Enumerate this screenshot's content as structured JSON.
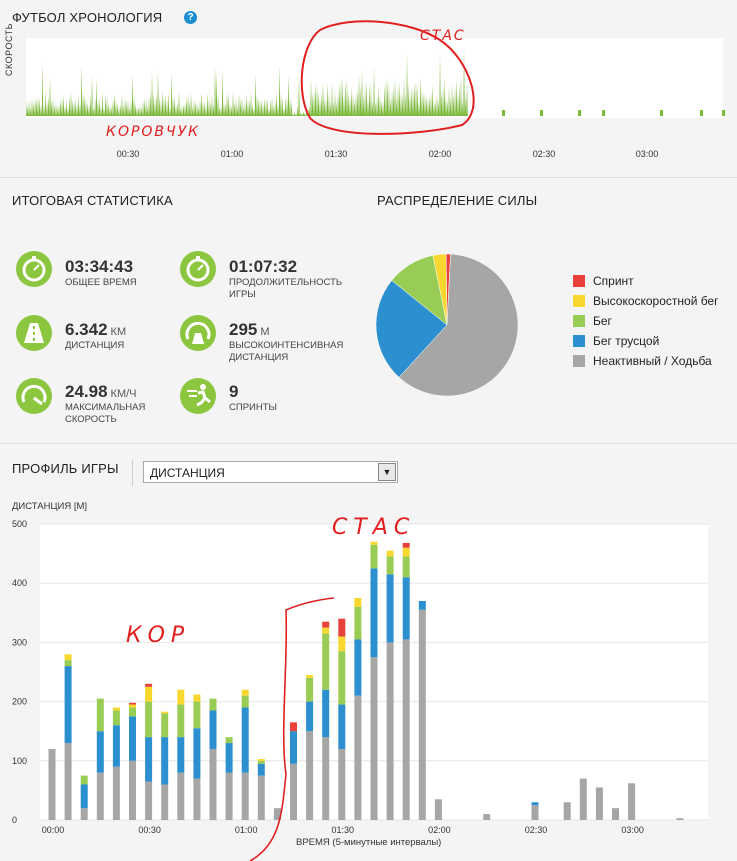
{
  "timeline": {
    "title": "ФУТБОЛ ХРОНОЛОГИЯ",
    "help": "?",
    "y_label": "СКОРОСТЬ",
    "ticks": [
      "00:30",
      "01:00",
      "01:30",
      "02:00",
      "02:30",
      "03:00"
    ],
    "annotation_kor": "КОРОВЧУК",
    "annotation_stas": "СТАС",
    "colors": {
      "speed": "#7cb83a",
      "annotation": "#e02020"
    }
  },
  "stats": {
    "title": "ИТОГОВАЯ СТАТИСТИКА",
    "items": [
      {
        "value": "03:34:43",
        "unit": "",
        "label": "ОБЩЕЕ ВРЕМЯ",
        "icon": "stopwatch-icon"
      },
      {
        "value": "01:07:32",
        "unit": "",
        "label": "ПРОДОЛЖИТЕЛЬНОСТЬ ИГРЫ",
        "icon": "stopwatch-icon"
      },
      {
        "value": "6.342",
        "unit": "КМ",
        "label": "ДИСТАНЦИЯ",
        "icon": "road-icon"
      },
      {
        "value": "295",
        "unit": "М",
        "label": "ВЫСОКОИНТЕНСИВНАЯ ДИСТАНЦИЯ",
        "icon": "speedometer-road-icon"
      },
      {
        "value": "24.98",
        "unit": "КМ/Ч",
        "label": "МАКСИМАЛЬНАЯ СКОРОСТЬ",
        "icon": "speedometer-icon"
      },
      {
        "value": "9",
        "unit": "",
        "label": "СПРИНТЫ",
        "icon": "sprint-icon"
      }
    ]
  },
  "distribution": {
    "title": "РАСПРЕДЕЛЕНИЕ СИЛЫ",
    "legend": [
      {
        "name": "Спринт",
        "color": "#e8413c",
        "share": 0.01
      },
      {
        "name": "Высокоскоростной бег",
        "color": "#f8d72e",
        "share": 0.03
      },
      {
        "name": "Бег",
        "color": "#99cc55",
        "share": 0.11
      },
      {
        "name": "Бег трусцой",
        "color": "#2c8fd0",
        "share": 0.24
      },
      {
        "name": "Неактивный / Ходьба",
        "color": "#a6a6a6",
        "share": 0.61
      }
    ]
  },
  "profile": {
    "title": "ПРОФИЛЬ ИГРЫ",
    "select_value": "ДИСТАНЦИЯ",
    "select_arrow": "▼",
    "annotation_kor": "КОР",
    "annotation_stas": "СТАС"
  },
  "chart_data": {
    "type": "bar",
    "stacked": true,
    "title": "",
    "ylabel": "ДИСТАНЦИЯ [М]",
    "xlabel": "ВРЕМЯ (5-минутные интервалы)",
    "ylim": [
      0,
      500
    ],
    "yticks": [
      "0",
      "100",
      "200",
      "300",
      "400",
      "500"
    ],
    "xtick_labels": [
      "00:00",
      "00:30",
      "01:00",
      "01:30",
      "02:00",
      "02:30",
      "03:00"
    ],
    "xtick_minutes": [
      0,
      30,
      60,
      90,
      120,
      150,
      180
    ],
    "grid": true,
    "x_minutes": [
      0,
      5,
      10,
      15,
      20,
      25,
      30,
      35,
      40,
      45,
      50,
      55,
      60,
      65,
      70,
      75,
      80,
      85,
      90,
      95,
      100,
      105,
      110,
      115,
      120,
      125,
      130,
      135,
      140,
      145,
      150,
      155,
      160,
      165,
      170,
      175,
      180,
      185,
      190,
      195
    ],
    "series": [
      {
        "name": "Неактивный / Ходьба",
        "color": "#a6a6a6",
        "values": [
          120,
          130,
          20,
          80,
          90,
          100,
          65,
          60,
          80,
          70,
          120,
          80,
          80,
          75,
          20,
          95,
          150,
          140,
          120,
          210,
          275,
          300,
          305,
          355,
          35,
          0,
          0,
          10,
          0,
          0,
          25,
          0,
          30,
          70,
          55,
          20,
          62,
          0,
          0,
          3
        ]
      },
      {
        "name": "Бег трусцой",
        "color": "#2c8fd0",
        "values": [
          0,
          130,
          40,
          70,
          70,
          75,
          75,
          80,
          60,
          85,
          65,
          50,
          110,
          20,
          0,
          55,
          50,
          80,
          75,
          95,
          150,
          115,
          105,
          15,
          0,
          0,
          0,
          0,
          0,
          0,
          5,
          0,
          0,
          0,
          0,
          0,
          0,
          0,
          0,
          0
        ]
      },
      {
        "name": "Бег",
        "color": "#99cc55",
        "values": [
          0,
          10,
          15,
          55,
          25,
          15,
          60,
          40,
          55,
          45,
          20,
          10,
          20,
          5,
          0,
          0,
          40,
          95,
          90,
          55,
          40,
          30,
          35,
          0,
          0,
          0,
          0,
          0,
          0,
          0,
          0,
          0,
          0,
          0,
          0,
          0,
          0,
          0,
          0,
          0
        ]
      },
      {
        "name": "Высокоскоростной бег",
        "color": "#f8d72e",
        "values": [
          0,
          10,
          0,
          0,
          5,
          5,
          25,
          3,
          25,
          12,
          0,
          0,
          10,
          3,
          0,
          0,
          5,
          10,
          25,
          15,
          5,
          10,
          15,
          0,
          0,
          0,
          0,
          0,
          0,
          0,
          0,
          0,
          0,
          0,
          0,
          0,
          0,
          0,
          0,
          0
        ]
      },
      {
        "name": "Спринт",
        "color": "#e8413c",
        "values": [
          0,
          0,
          0,
          0,
          0,
          3,
          5,
          0,
          0,
          0,
          0,
          0,
          0,
          0,
          0,
          15,
          0,
          10,
          30,
          0,
          0,
          0,
          8,
          0,
          0,
          0,
          0,
          0,
          0,
          0,
          0,
          0,
          0,
          0,
          0,
          0,
          0,
          0,
          0,
          0
        ]
      }
    ]
  }
}
